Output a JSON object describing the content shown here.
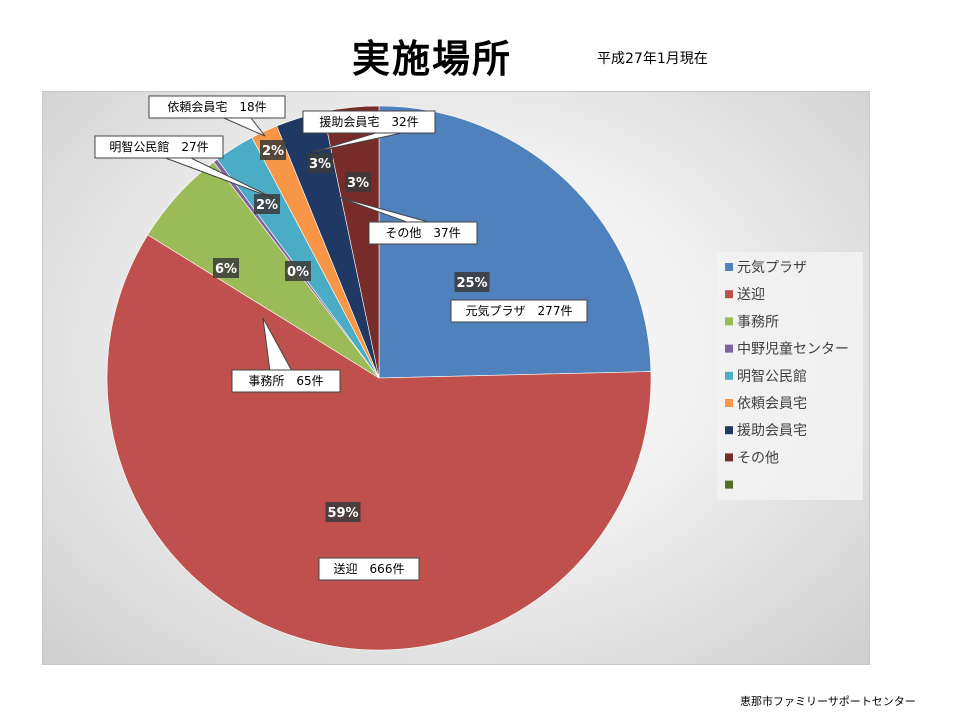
{
  "page": {
    "title": "実施場所",
    "subtitle": "平成27年1月現在",
    "footer": "恵那市ファミリーサポートセンター"
  },
  "chart_data": {
    "type": "pie",
    "title": "実施場所",
    "legend_position": "right",
    "slices": [
      {
        "name": "元気プラザ",
        "count": 277,
        "percent_label": "25%",
        "callout": "元気プラザ　277件",
        "color": "#4f81bd"
      },
      {
        "name": "送迎",
        "count": 666,
        "percent_label": "59%",
        "callout": "送迎　666件",
        "color": "#c0504d"
      },
      {
        "name": "事務所",
        "count": 65,
        "percent_label": "6%",
        "callout": "事務所　65件",
        "color": "#9bbb59"
      },
      {
        "name": "中野児童センター",
        "count": 3,
        "percent_label": "0%",
        "callout": "",
        "color": "#8064a2"
      },
      {
        "name": "明智公民館",
        "count": 27,
        "percent_label": "2%",
        "callout": "明智公民館　27件",
        "color": "#4bacc6"
      },
      {
        "name": "依頼会員宅",
        "count": 18,
        "percent_label": "2%",
        "callout": "依頼会員宅　18件",
        "color": "#f79646"
      },
      {
        "name": "援助会員宅",
        "count": 32,
        "percent_label": "3%",
        "callout": "援助会員宅　32件",
        "color": "#1f3864"
      },
      {
        "name": "その他",
        "count": 37,
        "percent_label": "3%",
        "callout": "その他　37件",
        "color": "#772c2a"
      },
      {
        "name": "",
        "count": 0,
        "percent_label": "",
        "callout": "",
        "color": "#4e6d28"
      }
    ]
  }
}
